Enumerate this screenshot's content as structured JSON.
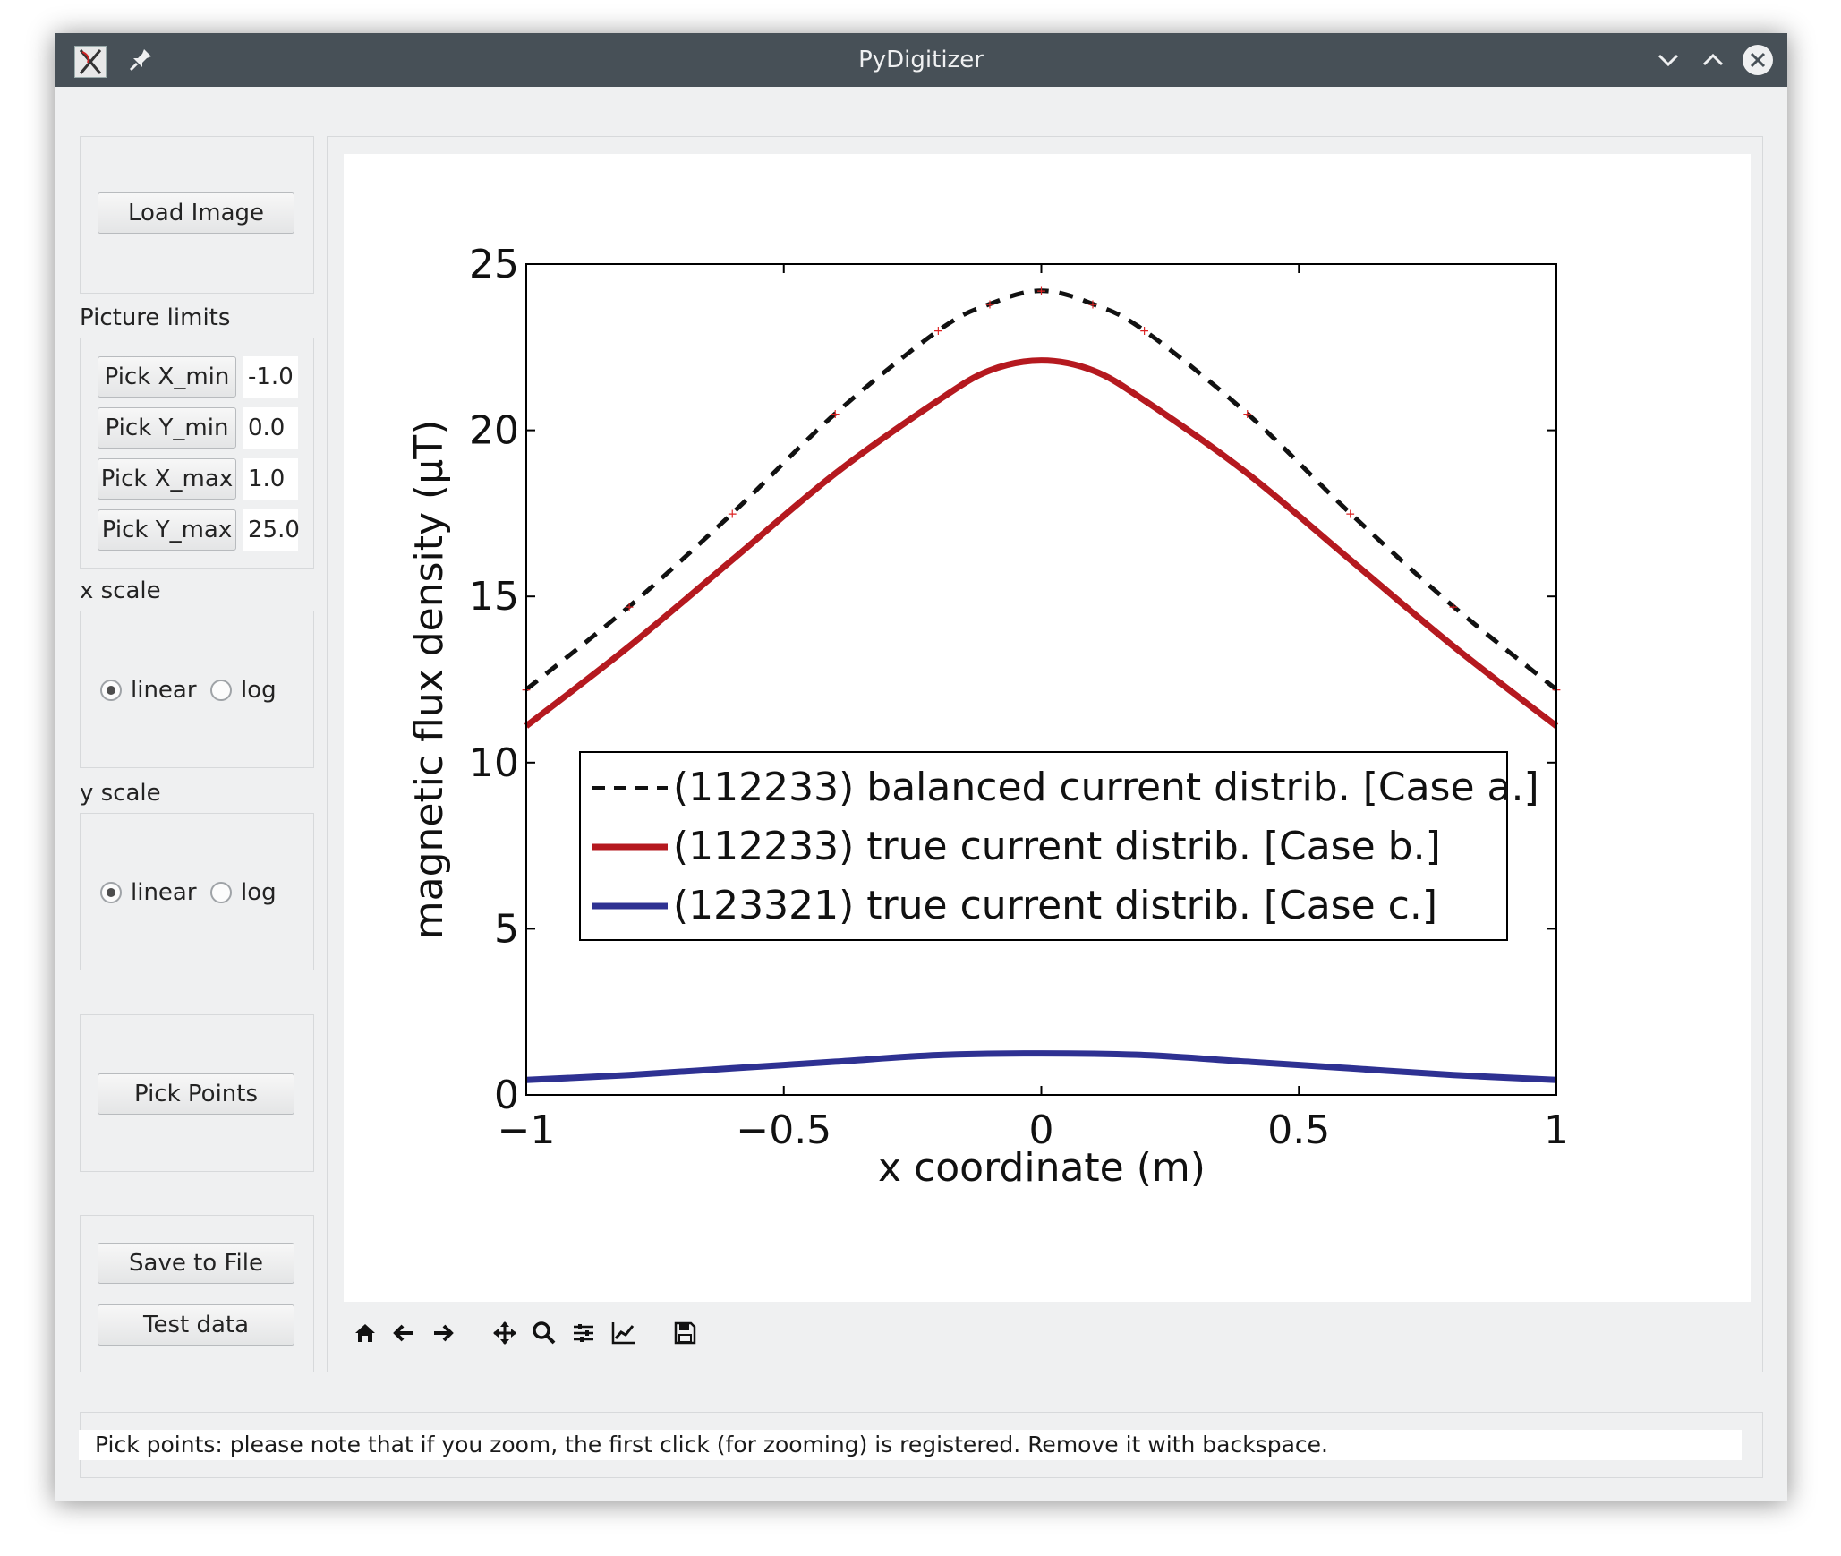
{
  "window": {
    "title": "PyDigitizer"
  },
  "sidebar": {
    "load_image": "Load Image",
    "picture_limits_label": "Picture limits",
    "limits": [
      {
        "button": "Pick X_min",
        "value": "-1.0"
      },
      {
        "button": "Pick Y_min",
        "value": "0.0"
      },
      {
        "button": "Pick X_max",
        "value": "1.0"
      },
      {
        "button": "Pick Y_max",
        "value": "25.0"
      }
    ],
    "x_scale": {
      "label": "x scale",
      "options": [
        "linear",
        "log"
      ],
      "selected": "linear"
    },
    "y_scale": {
      "label": "y scale",
      "options": [
        "linear",
        "log"
      ],
      "selected": "linear"
    },
    "pick_points": "Pick Points",
    "save_to_file": "Save to File",
    "test_data": "Test data"
  },
  "toolbar": {
    "icons": [
      "home-icon",
      "back-icon",
      "forward-icon",
      "pan-icon",
      "zoom-icon",
      "subplots-icon",
      "customize-icon",
      "save-icon"
    ]
  },
  "status": {
    "message": "Pick points: please note that if you zoom, the first click (for zooming) is registered. Remove it with backspace."
  },
  "chart_data": {
    "type": "line",
    "title": "",
    "xlabel": "x coordinate (m)",
    "ylabel": "magnetic flux density (µT)",
    "xlim": [
      -1,
      1
    ],
    "ylim": [
      0,
      25
    ],
    "x_ticks": [
      "−1",
      "−0.5",
      "0",
      "0.5",
      "1"
    ],
    "y_ticks": [
      "0",
      "5",
      "10",
      "15",
      "20",
      "25"
    ],
    "legend_position": "center",
    "series": [
      {
        "name": "(112233) balanced current distrib. [Case a.]",
        "style": "dashed",
        "color": "#111111",
        "x": [
          -1,
          -0.8,
          -0.6,
          -0.4,
          -0.2,
          -0.1,
          0,
          0.1,
          0.2,
          0.4,
          0.6,
          0.8,
          1
        ],
        "y": [
          12.2,
          14.7,
          17.5,
          20.5,
          23.0,
          23.8,
          24.2,
          23.8,
          23.0,
          20.5,
          17.5,
          14.7,
          12.2
        ]
      },
      {
        "name": "(112233) true current distrib. [Case b.]",
        "style": "solid",
        "color": "#b5191f",
        "x": [
          -1,
          -0.8,
          -0.6,
          -0.4,
          -0.2,
          -0.1,
          0,
          0.1,
          0.2,
          0.4,
          0.6,
          0.8,
          1
        ],
        "y": [
          11.1,
          13.5,
          16.1,
          18.7,
          20.9,
          21.8,
          22.1,
          21.8,
          20.9,
          18.7,
          16.1,
          13.5,
          11.1
        ]
      },
      {
        "name": "(123321) true current distrib. [Case c.]",
        "style": "solid",
        "color": "#2e3192",
        "x": [
          -1,
          -0.8,
          -0.6,
          -0.4,
          -0.2,
          0,
          0.2,
          0.4,
          0.6,
          0.8,
          1
        ],
        "y": [
          0.45,
          0.6,
          0.8,
          1.0,
          1.2,
          1.25,
          1.2,
          1.0,
          0.8,
          0.6,
          0.45
        ]
      }
    ]
  }
}
